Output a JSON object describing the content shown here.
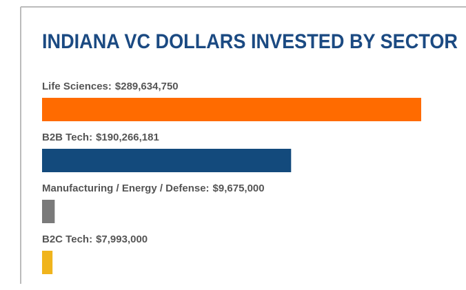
{
  "chart_data": {
    "type": "bar",
    "orientation": "horizontal",
    "title": "INDIANA VC DOLLARS INVESTED BY SECTOR",
    "categories": [
      "Life Sciences:",
      "B2B Tech:",
      "Manufacturing / Energy / Defense:",
      "B2C Tech:"
    ],
    "values": [
      289634750,
      190266181,
      9675000,
      7993000
    ],
    "value_labels": [
      "$289,634,750",
      "$190,266,181",
      "$9,675,000",
      "$7,993,000"
    ],
    "colors": [
      "#ff6b00",
      "#134a7c",
      "#7a7a7a",
      "#f0b41c"
    ]
  }
}
